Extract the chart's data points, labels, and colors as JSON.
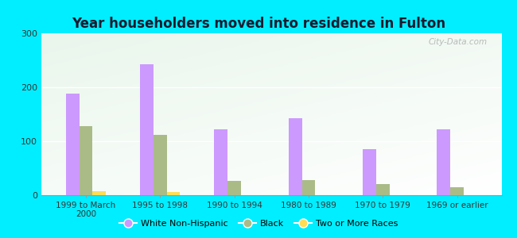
{
  "title": "Year householders moved into residence in Fulton",
  "categories": [
    "1999 to March\n2000",
    "1995 to 1998",
    "1990 to 1994",
    "1980 to 1989",
    "1970 to 1979",
    "1969 or earlier"
  ],
  "series": {
    "White Non-Hispanic": [
      188,
      242,
      122,
      142,
      85,
      122
    ],
    "Black": [
      128,
      112,
      27,
      28,
      20,
      15
    ],
    "Two or More Races": [
      8,
      6,
      0,
      0,
      0,
      0
    ]
  },
  "colors": {
    "White Non-Hispanic": "#cc99ff",
    "Black": "#aabb88",
    "Two or More Races": "#ffdd55"
  },
  "ylim": [
    0,
    300
  ],
  "yticks": [
    0,
    100,
    200,
    300
  ],
  "background_color": "#00eeff",
  "bar_width": 0.18,
  "legend_labels": [
    "White Non-Hispanic",
    "Black",
    "Two or More Races"
  ],
  "watermark": "City-Data.com"
}
